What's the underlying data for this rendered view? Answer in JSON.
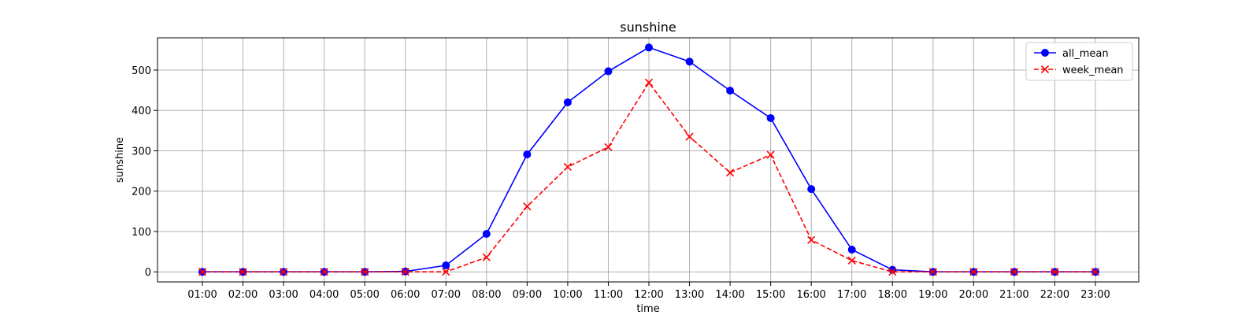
{
  "chart_data": {
    "type": "line",
    "title": "sunshine",
    "xlabel": "time",
    "ylabel": "sunshine",
    "categories": [
      "01:00",
      "02:00",
      "03:00",
      "04:00",
      "05:00",
      "06:00",
      "07:00",
      "08:00",
      "09:00",
      "10:00",
      "11:00",
      "12:00",
      "13:00",
      "14:00",
      "15:00",
      "16:00",
      "17:00",
      "18:00",
      "19:00",
      "20:00",
      "21:00",
      "22:00",
      "23:00"
    ],
    "ylim": [
      -25,
      580
    ],
    "yticks": [
      0,
      100,
      200,
      300,
      400,
      500
    ],
    "grid": true,
    "legend_position": "top-right",
    "series": [
      {
        "name": "all_mean",
        "color": "#0000ff",
        "line_style": "solid",
        "marker": "circle",
        "values": [
          0,
          0,
          0,
          0,
          0,
          1,
          16,
          94,
          291,
          420,
          497,
          556,
          521,
          449,
          381,
          205,
          55,
          5,
          0,
          0,
          0,
          0,
          0
        ]
      },
      {
        "name": "week_mean",
        "color": "#ff0000",
        "line_style": "dashed",
        "marker": "x",
        "values": [
          0,
          0,
          0,
          0,
          0,
          0,
          0,
          36,
          162,
          260,
          309,
          469,
          335,
          246,
          290,
          79,
          28,
          0,
          0,
          0,
          0,
          0,
          0
        ]
      }
    ]
  }
}
